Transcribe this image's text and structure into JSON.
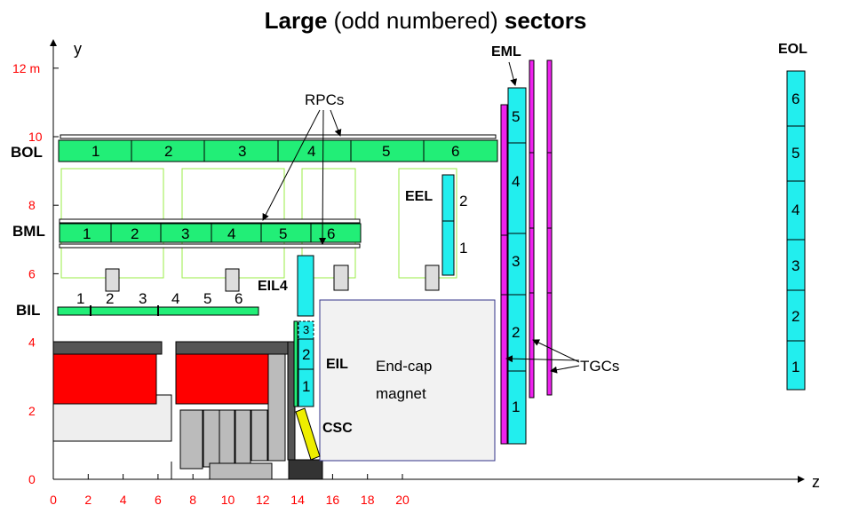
{
  "title": {
    "bold_start": "Large",
    "middle": " (odd numbered) ",
    "bold_end": "sectors"
  },
  "axes": {
    "x_label": "z",
    "y_label": "y",
    "x_ticks": [
      "0",
      "2",
      "4",
      "6",
      "8",
      "10",
      "12",
      "14",
      "16",
      "18",
      "20"
    ],
    "y_ticks": [
      "0",
      "2",
      "4",
      "6",
      "8",
      "10",
      "12 m"
    ],
    "tick_color": "#ff0000"
  },
  "chambers": {
    "bol": {
      "label": "BOL",
      "cells": [
        "1",
        "2",
        "3",
        "4",
        "5",
        "6"
      ]
    },
    "bml": {
      "label": "BML",
      "cells": [
        "1",
        "2",
        "3",
        "4",
        "5",
        "6"
      ]
    },
    "bil": {
      "label": "BIL",
      "cells": [
        "1",
        "2",
        "3",
        "4",
        "5",
        "6"
      ]
    },
    "eml": {
      "label": "EML",
      "cells": [
        "1",
        "2",
        "3",
        "4",
        "5"
      ]
    },
    "eol": {
      "label": "EOL",
      "cells": [
        "1",
        "2",
        "3",
        "4",
        "5",
        "6"
      ]
    },
    "eel": {
      "label": "EEL",
      "cells": [
        "1",
        "2"
      ]
    },
    "eil": {
      "label": "EIL",
      "cells": [
        "1",
        "2",
        "3"
      ]
    },
    "eil4": {
      "label": "EIL4"
    },
    "csc": {
      "label": "CSC"
    }
  },
  "annotations": {
    "rpcs": "RPCs",
    "tgcs": "TGCs",
    "magnet_line1": "End-cap",
    "magnet_line2": "magnet"
  },
  "colors": {
    "barrel_green": "#22ee77",
    "endcap_cyan": "#22eeee",
    "tgc_magenta": "#ee22ee",
    "csc_yellow": "#eeee00",
    "magnet_red": "#ff0000",
    "outline_green": "#99ee44",
    "magnet_outline": "#333388"
  }
}
